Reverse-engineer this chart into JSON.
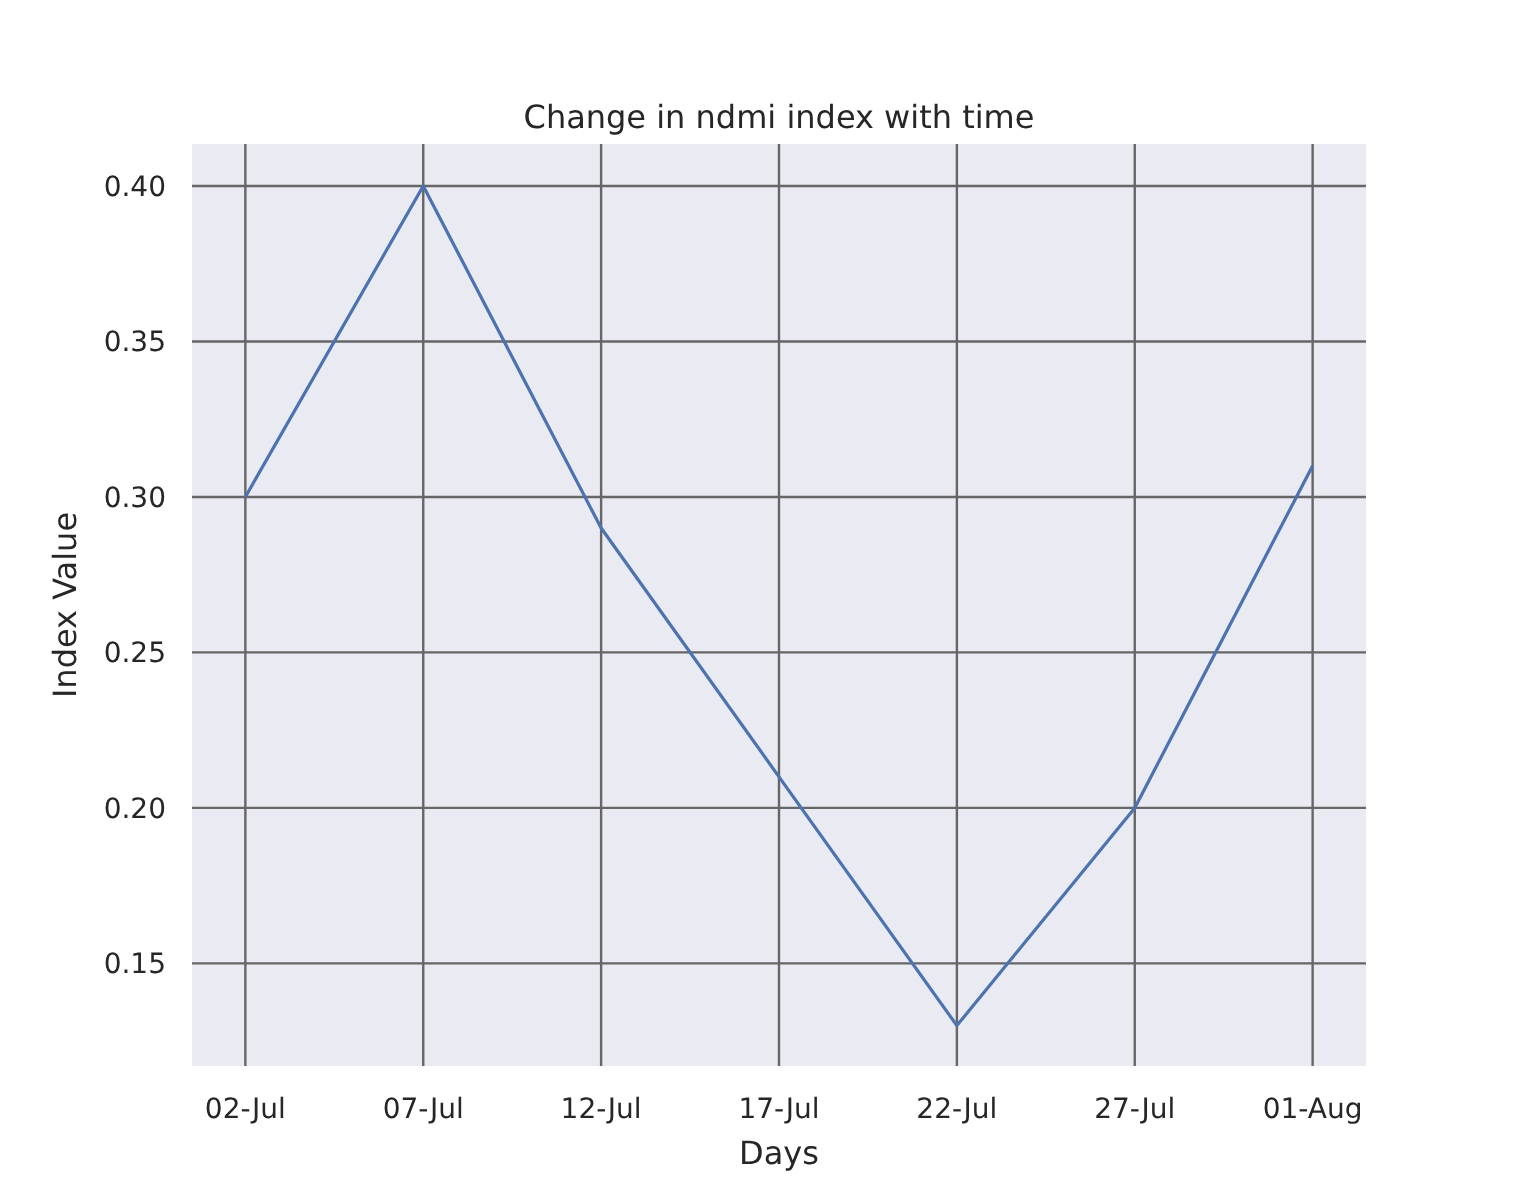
{
  "chart_data": {
    "type": "line",
    "title": "Change in ndmi index with time",
    "xlabel": "Days",
    "ylabel": "Index Value",
    "categories": [
      "02-Jul",
      "07-Jul",
      "12-Jul",
      "17-Jul",
      "22-Jul",
      "27-Jul",
      "01-Aug"
    ],
    "series": [
      {
        "color": "#4c72b0",
        "values": [
          0.3,
          0.4,
          0.29,
          0.21,
          0.13,
          0.2,
          0.31
        ]
      }
    ],
    "ylim": [
      0.117,
      0.4135
    ],
    "yticks": [
      {
        "value": 0.15,
        "label": "0.15"
      },
      {
        "value": 0.2,
        "label": "0.20"
      },
      {
        "value": 0.25,
        "label": "0.25"
      },
      {
        "value": 0.3,
        "label": "0.30"
      },
      {
        "value": 0.35,
        "label": "0.35"
      },
      {
        "value": 0.4,
        "label": "0.40"
      }
    ],
    "grid": true,
    "marker": "none",
    "line_style": "solid"
  }
}
